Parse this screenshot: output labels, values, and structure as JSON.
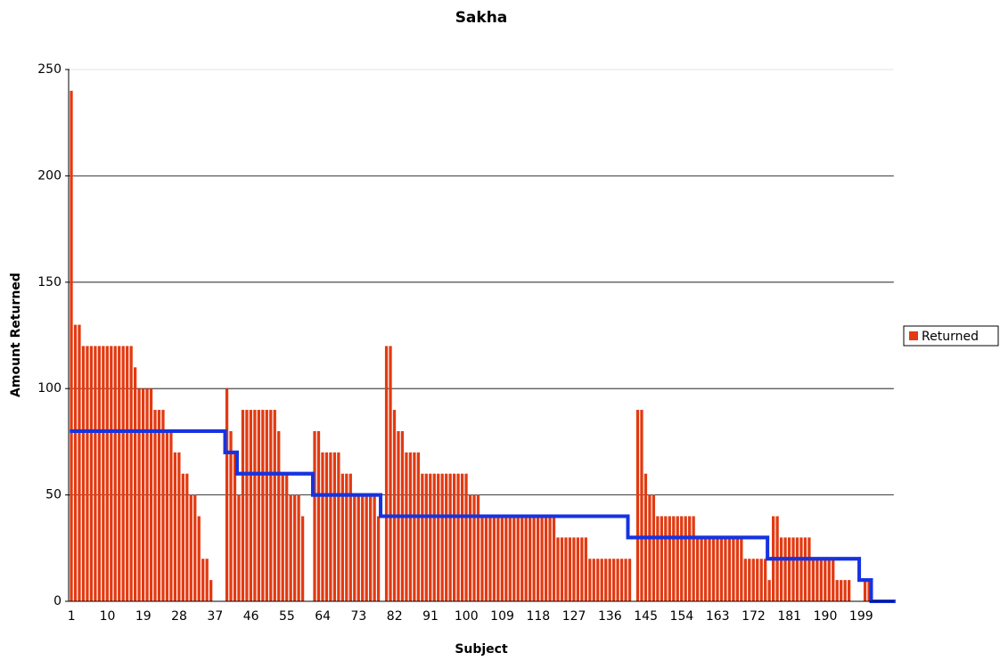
{
  "chart_data": {
    "type": "bar",
    "title": "Sakha",
    "x_label": "Subject",
    "y_label": "Amount Returned",
    "categories": [
      1,
      null,
      null,
      null,
      null,
      null,
      null,
      null,
      null,
      10,
      null,
      null,
      null,
      null,
      null,
      null,
      null,
      null,
      19,
      null,
      null,
      null,
      null,
      null,
      null,
      null,
      null,
      28,
      null,
      null,
      null,
      null,
      null,
      null,
      null,
      null,
      37,
      null,
      null,
      null,
      null,
      null,
      null,
      null,
      null,
      46,
      null,
      null,
      null,
      null,
      null,
      null,
      null,
      null,
      55,
      null,
      null,
      null,
      null,
      null,
      null,
      null,
      null,
      64,
      null,
      null,
      null,
      null,
      null,
      null,
      null,
      null,
      73,
      null,
      null,
      null,
      null,
      null,
      null,
      null,
      null,
      82,
      null,
      null,
      null,
      null,
      null,
      null,
      null,
      null,
      91,
      null,
      null,
      null,
      null,
      null,
      null,
      null,
      null,
      100,
      null,
      null,
      null,
      null,
      null,
      null,
      null,
      null,
      109,
      null,
      null,
      null,
      null,
      null,
      null,
      null,
      null,
      118,
      null,
      null,
      null,
      null,
      null,
      null,
      null,
      null,
      127,
      null,
      null,
      null,
      null,
      null,
      null,
      null,
      null,
      136,
      null,
      null,
      null,
      null,
      null,
      null,
      null,
      null,
      145,
      null,
      null,
      null,
      null,
      null,
      null,
      null,
      null,
      154,
      null,
      null,
      null,
      null,
      null,
      null,
      null,
      null,
      163,
      null,
      null,
      null,
      null,
      null,
      null,
      null,
      null,
      172,
      null,
      null,
      null,
      null,
      null,
      null,
      null,
      null,
      181,
      null,
      null,
      null,
      null,
      null,
      null,
      null,
      null,
      190,
      null,
      null,
      null,
      null,
      null,
      null,
      null,
      null,
      199,
      null,
      null,
      null,
      null,
      null,
      null,
      null
    ],
    "series": [
      {
        "name": "Returned",
        "type": "bar",
        "color": "#e23a12",
        "values": [
          240,
          130,
          130,
          120,
          120,
          120,
          120,
          120,
          120,
          120,
          120,
          120,
          120,
          120,
          120,
          120,
          110,
          100,
          100,
          100,
          100,
          90,
          90,
          90,
          80,
          80,
          70,
          70,
          60,
          60,
          50,
          50,
          40,
          20,
          20,
          10,
          0,
          0,
          0,
          100,
          80,
          70,
          50,
          90,
          90,
          90,
          90,
          90,
          90,
          90,
          90,
          90,
          80,
          60,
          60,
          50,
          50,
          50,
          40,
          0,
          0,
          80,
          80,
          70,
          70,
          70,
          70,
          70,
          60,
          60,
          60,
          50,
          50,
          50,
          50,
          50,
          50,
          40,
          0,
          120,
          120,
          90,
          80,
          80,
          70,
          70,
          70,
          70,
          60,
          60,
          60,
          60,
          60,
          60,
          60,
          60,
          60,
          60,
          60,
          60,
          50,
          50,
          50,
          40,
          40,
          40,
          40,
          40,
          40,
          40,
          40,
          40,
          40,
          40,
          40,
          40,
          40,
          40,
          40,
          40,
          40,
          40,
          30,
          30,
          30,
          30,
          30,
          30,
          30,
          30,
          20,
          20,
          20,
          20,
          20,
          20,
          20,
          20,
          20,
          20,
          20,
          0,
          90,
          90,
          60,
          50,
          50,
          40,
          40,
          40,
          40,
          40,
          40,
          40,
          40,
          40,
          40,
          30,
          30,
          30,
          30,
          30,
          30,
          30,
          30,
          30,
          30,
          30,
          30,
          20,
          20,
          20,
          20,
          20,
          20,
          10,
          40,
          40,
          30,
          30,
          30,
          30,
          30,
          30,
          30,
          30,
          20,
          20,
          20,
          20,
          20,
          20,
          10,
          10,
          10,
          10,
          0,
          0,
          0,
          10,
          10,
          0,
          0,
          0,
          0,
          0
        ]
      },
      {
        "type": "step",
        "color": "#1633e0",
        "values": [
          80,
          80,
          80,
          80,
          80,
          80,
          80,
          80,
          80,
          80,
          80,
          80,
          80,
          80,
          80,
          80,
          80,
          80,
          80,
          80,
          80,
          80,
          80,
          80,
          80,
          80,
          80,
          80,
          80,
          80,
          80,
          80,
          80,
          80,
          80,
          80,
          80,
          80,
          80,
          70,
          70,
          70,
          60,
          60,
          60,
          60,
          60,
          60,
          60,
          60,
          60,
          60,
          60,
          60,
          60,
          60,
          60,
          60,
          60,
          60,
          60,
          50,
          50,
          50,
          50,
          50,
          50,
          50,
          50,
          50,
          50,
          50,
          50,
          50,
          50,
          50,
          50,
          50,
          40,
          40,
          40,
          40,
          40,
          40,
          40,
          40,
          40,
          40,
          40,
          40,
          40,
          40,
          40,
          40,
          40,
          40,
          40,
          40,
          40,
          40,
          40,
          40,
          40,
          40,
          40,
          40,
          40,
          40,
          40,
          40,
          40,
          40,
          40,
          40,
          40,
          40,
          40,
          40,
          40,
          40,
          40,
          40,
          40,
          40,
          40,
          40,
          40,
          40,
          40,
          40,
          40,
          40,
          40,
          40,
          40,
          40,
          40,
          40,
          40,
          40,
          30,
          30,
          30,
          30,
          30,
          30,
          30,
          30,
          30,
          30,
          30,
          30,
          30,
          30,
          30,
          30,
          30,
          30,
          30,
          30,
          30,
          30,
          30,
          30,
          30,
          30,
          30,
          30,
          30,
          30,
          30,
          30,
          30,
          30,
          30,
          20,
          20,
          20,
          20,
          20,
          20,
          20,
          20,
          20,
          20,
          20,
          20,
          20,
          20,
          20,
          20,
          20,
          20,
          20,
          20,
          20,
          20,
          20,
          10,
          10,
          10,
          0,
          0,
          0,
          0,
          0
        ]
      }
    ],
    "ylim": [
      0,
      250
    ],
    "yticks": [
      0,
      50,
      100,
      150,
      200,
      250
    ],
    "grid": true,
    "legend": "right"
  }
}
